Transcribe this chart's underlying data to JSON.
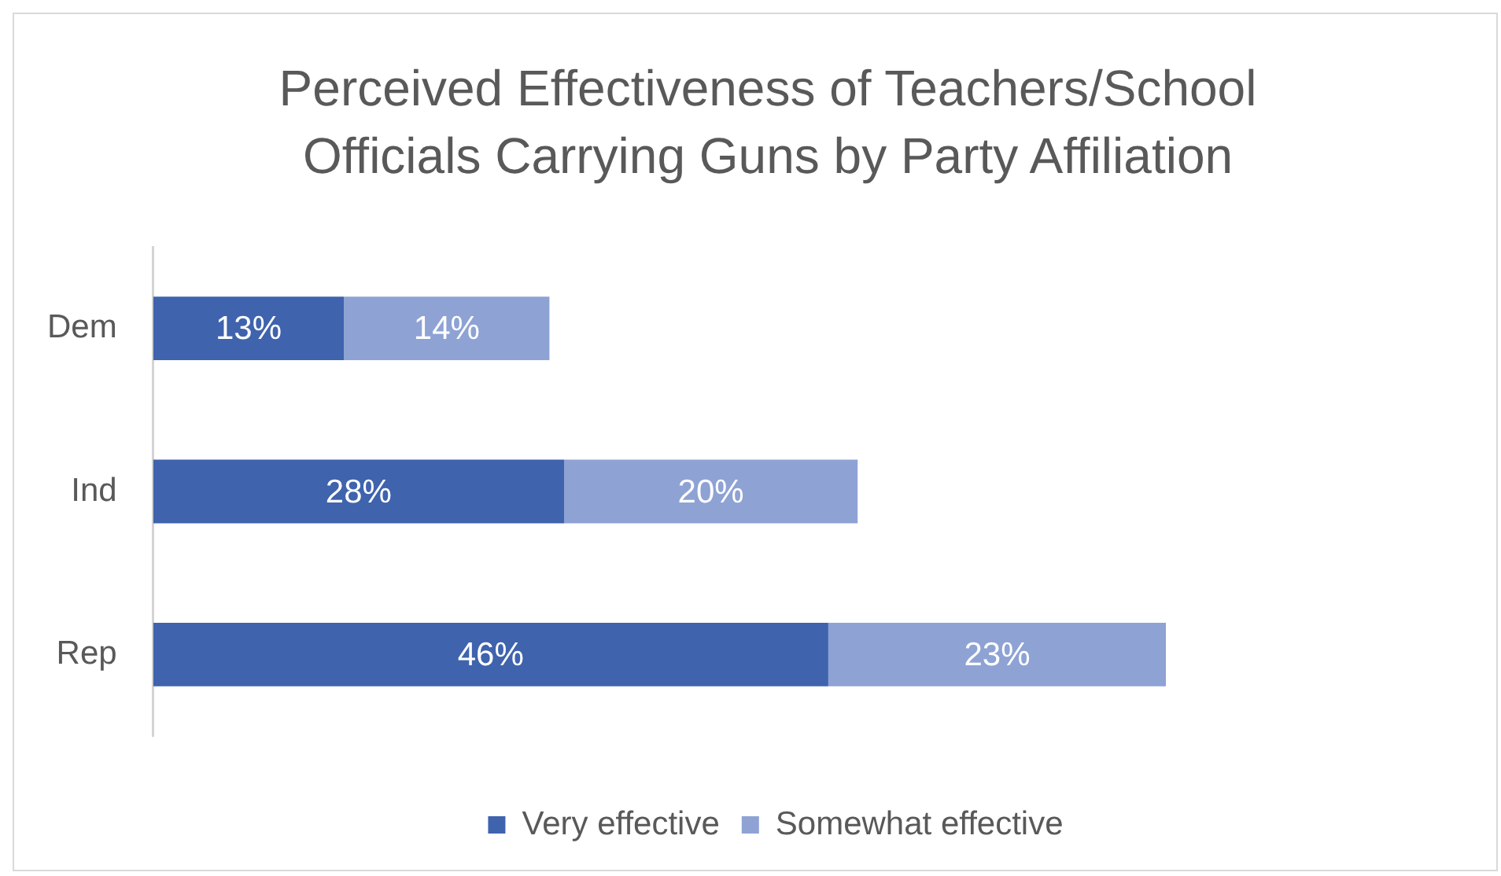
{
  "chart_data": {
    "type": "bar",
    "orientation": "horizontal",
    "stacked": true,
    "title": "Perceived Effectiveness of Teachers/School Officials Carrying Guns by Party Affiliation",
    "categories": [
      "Dem",
      "Ind",
      "Rep"
    ],
    "series": [
      {
        "name": "Very effective",
        "color": "#3f63ad",
        "values": [
          13,
          28,
          46
        ],
        "value_labels": [
          "13%",
          "28%",
          "46%"
        ]
      },
      {
        "name": "Somewhat effective",
        "color": "#8ea2d4",
        "values": [
          14,
          20,
          23
        ],
        "value_labels": [
          "14%",
          "20%",
          "23%"
        ]
      }
    ],
    "legend": "bottom",
    "grid": false,
    "tick_labels": "y"
  }
}
